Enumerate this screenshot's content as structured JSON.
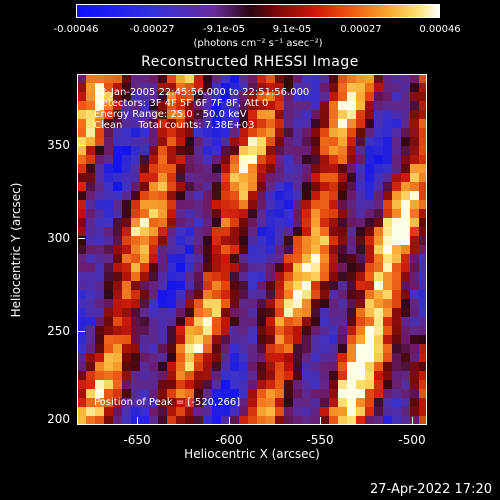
{
  "colorbar": {
    "tick_labels": [
      "-0.00046",
      "-0.00027",
      "-9.1e-05",
      "9.1e-05",
      "0.00027",
      "0.00046"
    ],
    "unit_label": "(photons cm⁻² s⁻¹ asec⁻²)"
  },
  "title": "Reconstructed RHESSI Image",
  "info": {
    "line1": "12-Jan-2005 22:45:56.000 to 22:51:56.000",
    "line2": "Detectors: 3F 4F 5F 6F 7F 8F, Att 0",
    "line3": "Energy Range: 25.0 - 50.0 keV",
    "line4": "Clean     Total counts: 7.38E+03",
    "peak": "Position of Peak = [-520,266]"
  },
  "axes": {
    "y_ticks": [
      "350",
      "300",
      "250",
      "200"
    ],
    "x_ticks": [
      "-650",
      "-600",
      "-550",
      "-500"
    ],
    "xlabel": "Heliocentric X (arcsec)",
    "ylabel": "Heliocentric Y (arcsec)",
    "xlim": [
      -677,
      -494
    ],
    "ylim": [
      197,
      378
    ]
  },
  "colors": {
    "colormap": [
      "#1a1aff",
      "#5a2a9a",
      "#7a1a6a",
      "#3a0a10",
      "#b01010",
      "#e04a10",
      "#f08a20",
      "#f8d050",
      "#ffffd0"
    ]
  },
  "timestamp": "27-Apr-2022 17:20"
}
